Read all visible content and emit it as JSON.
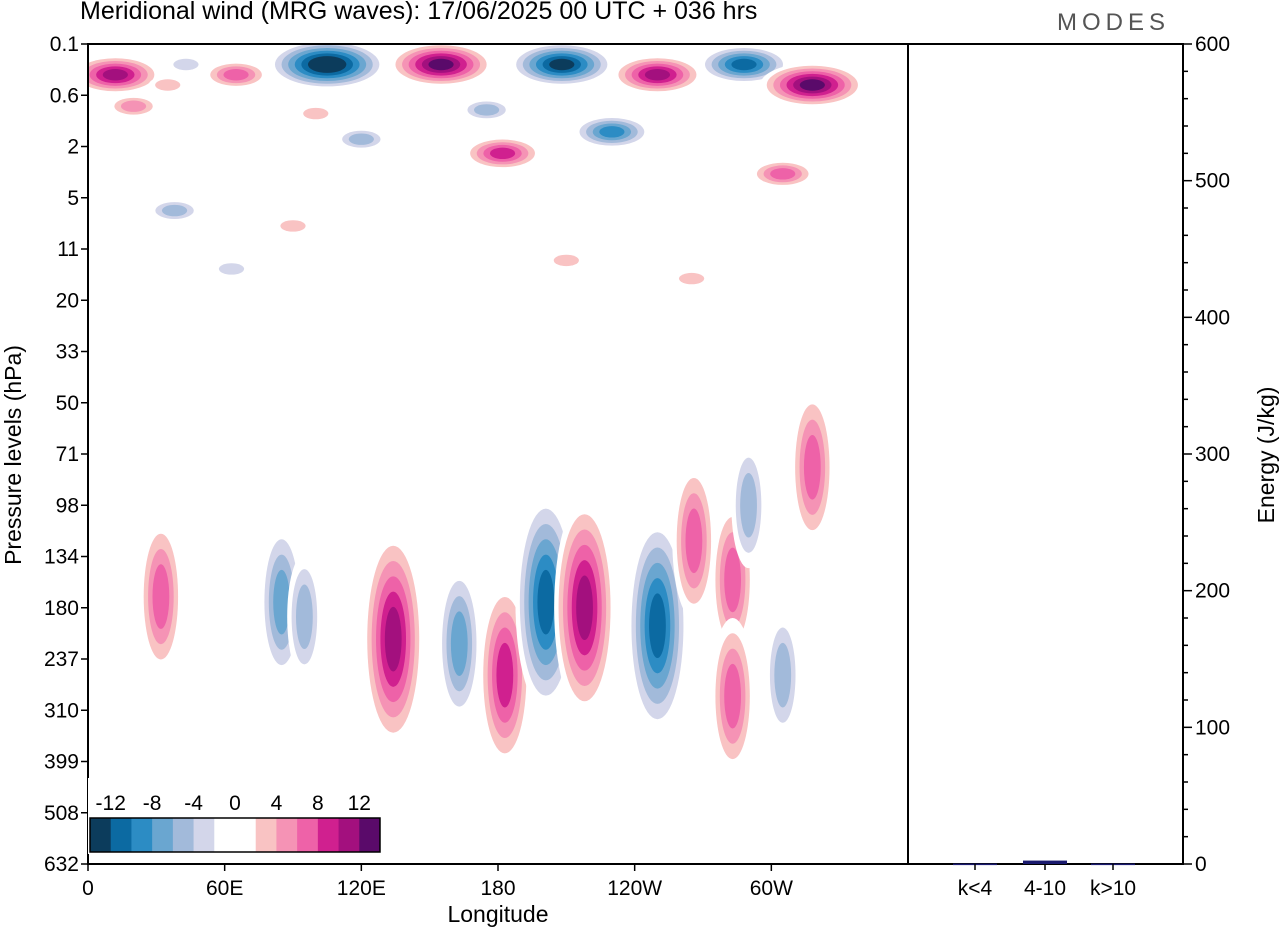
{
  "header": {
    "title": "Meridional wind (MRG waves):  17/06/2025  00 UTC  + 036 hrs",
    "brand": "MODES"
  },
  "colors": {
    "levels": [
      -12,
      -8,
      -4,
      0,
      4,
      8,
      12
    ],
    "palette": [
      "#0c3c5c",
      "#0c6aa2",
      "#2c8cc4",
      "#6aa6d0",
      "#a2bada",
      "#d3d6ea",
      "#ffffff",
      "#ffffff",
      "#f9c3c3",
      "#f593b5",
      "#ee62a8",
      "#d0208f",
      "#a3107e",
      "#5a0a6a"
    ]
  },
  "chart_data": [
    {
      "type": "heatmap",
      "title": "Meridional wind (MRG waves):  17/06/2025  00 UTC  + 036 hrs",
      "xlabel": "Longitude",
      "ylabel": "Pressure levels (hPa)",
      "x_ticks": [
        "0",
        "60E",
        "120E",
        "180",
        "120W",
        "60W"
      ],
      "y_ticks": [
        "0.1",
        "0.6",
        "2",
        "5",
        "11",
        "20",
        "33",
        "50",
        "71",
        "98",
        "134",
        "180",
        "237",
        "310",
        "399",
        "508",
        "632"
      ],
      "colorbar": {
        "labels": [
          "-12",
          "-8",
          "-4",
          "0",
          "4",
          "8",
          "12"
        ],
        "levels": [
          -12,
          -8,
          -4,
          0,
          4,
          8,
          12
        ]
      },
      "features": [
        {
          "lon": 12,
          "level": 0.4,
          "value": 12
        },
        {
          "lon": 20,
          "level": 0.9,
          "value": 6
        },
        {
          "lon": 35,
          "level": 0.5,
          "value": 4
        },
        {
          "lon": 43,
          "level": 0.3,
          "value": -4
        },
        {
          "lon": 65,
          "level": 0.4,
          "value": 8
        },
        {
          "lon": 105,
          "level": 0.3,
          "value": -15
        },
        {
          "lon": 120,
          "level": 1.8,
          "value": -6
        },
        {
          "lon": 100,
          "level": 1.1,
          "value": 4
        },
        {
          "lon": 155,
          "level": 0.3,
          "value": 14
        },
        {
          "lon": 175,
          "level": 1.0,
          "value": -5
        },
        {
          "lon": 182,
          "level": 2.4,
          "value": 10
        },
        {
          "lon": 208,
          "level": 0.3,
          "value": -14
        },
        {
          "lon": 230,
          "level": 1.6,
          "value": -10
        },
        {
          "lon": 250,
          "level": 0.4,
          "value": 12
        },
        {
          "lon": 288,
          "level": 0.3,
          "value": -12
        },
        {
          "lon": 318,
          "level": 0.5,
          "value": 14
        },
        {
          "lon": 305,
          "level": 3.6,
          "value": 7
        },
        {
          "lon": 38,
          "level": 6.5,
          "value": -6
        },
        {
          "lon": 90,
          "level": 8.3,
          "value": 4
        },
        {
          "lon": 63,
          "level": 14.5,
          "value": -3
        },
        {
          "lon": 210,
          "level": 13.0,
          "value": 3
        },
        {
          "lon": 265,
          "level": 16.2,
          "value": 3
        },
        {
          "lon": 32,
          "level": 170,
          "value": 8
        },
        {
          "lon": 85,
          "level": 175,
          "value": -7
        },
        {
          "lon": 95,
          "level": 190,
          "value": -6
        },
        {
          "lon": 134,
          "level": 215,
          "value": 12
        },
        {
          "lon": 163,
          "level": 220,
          "value": -7
        },
        {
          "lon": 183,
          "level": 260,
          "value": 9
        },
        {
          "lon": 201,
          "level": 175,
          "value": -12
        },
        {
          "lon": 218,
          "level": 180,
          "value": 12
        },
        {
          "lon": 250,
          "level": 200,
          "value": -12
        },
        {
          "lon": 266,
          "level": 123,
          "value": 8
        },
        {
          "lon": 283,
          "level": 155,
          "value": 8
        },
        {
          "lon": 283,
          "level": 290,
          "value": 8
        },
        {
          "lon": 305,
          "level": 260,
          "value": -6
        },
        {
          "lon": 290,
          "level": 98,
          "value": -6
        },
        {
          "lon": 318,
          "level": 78,
          "value": 7
        }
      ]
    },
    {
      "type": "bar",
      "ylabel": "Energy (J/kg)",
      "categories": [
        "k<4",
        "4-10",
        "k>10"
      ],
      "values": [
        0.3,
        2.5,
        0.3
      ],
      "ylim": [
        0,
        600
      ],
      "y_ticks": [
        "0",
        "100",
        "200",
        "300",
        "400",
        "500",
        "600"
      ],
      "color": "#1a1a6e"
    }
  ]
}
